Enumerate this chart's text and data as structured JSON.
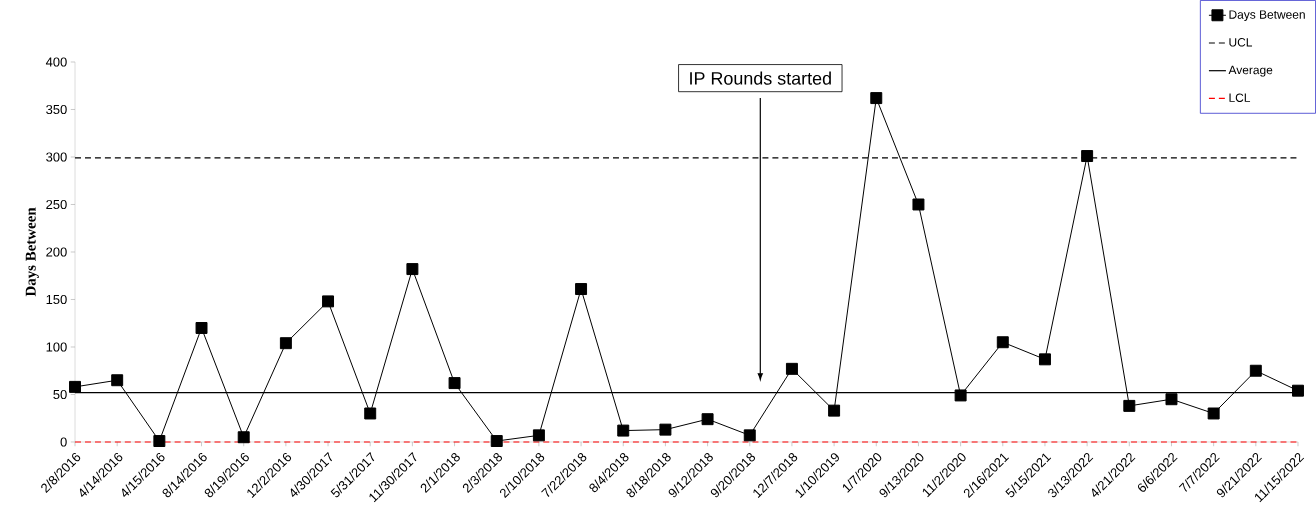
{
  "chart_data": {
    "type": "line",
    "ylabel": "Days Between",
    "categories": [
      "2/8/2016",
      "4/14/2016",
      "4/15/2016",
      "8/14/2016",
      "8/19/2016",
      "12/2/2016",
      "4/30/2017",
      "5/31/2017",
      "11/30/2017",
      "2/1/2018",
      "2/3/2018",
      "2/10/2018",
      "7/22/2018",
      "8/4/2018",
      "8/18/2018",
      "9/12/2018",
      "9/20/2018",
      "12/7/2018",
      "1/10/2019",
      "1/7/2020",
      "9/13/2020",
      "11/2/2020",
      "2/16/2021",
      "5/15/2021",
      "3/13/2022",
      "4/21/2022",
      "6/6/2022",
      "7/7/2022",
      "9/21/2022",
      "11/15/2022"
    ],
    "series": [
      {
        "name": "Days Between",
        "color": "#000000",
        "values": [
          58,
          65,
          1,
          120,
          5,
          104,
          148,
          30,
          182,
          62,
          1,
          7,
          161,
          12,
          13,
          24,
          7,
          77,
          33,
          362,
          250,
          49,
          105,
          87,
          301,
          38,
          45,
          30,
          75,
          54
        ]
      }
    ],
    "ref_lines": [
      {
        "axis": "y",
        "value": 299,
        "label": "UCL",
        "color": "#000000",
        "line_style": "dashed"
      },
      {
        "axis": "y",
        "value": 52,
        "label": "Average",
        "color": "#000000",
        "line_style": "solid"
      },
      {
        "axis": "y",
        "value": 0,
        "label": "LCL",
        "color": "#ff0000",
        "line_style": "dashed"
      }
    ],
    "annotations": [
      "IP Rounds started"
    ],
    "ylim": [
      0,
      400
    ],
    "yticks": [
      0,
      50,
      100,
      150,
      200,
      250,
      300,
      350,
      400
    ],
    "marker": "square",
    "line_style": "solid",
    "legend": "top right",
    "grid": false
  }
}
